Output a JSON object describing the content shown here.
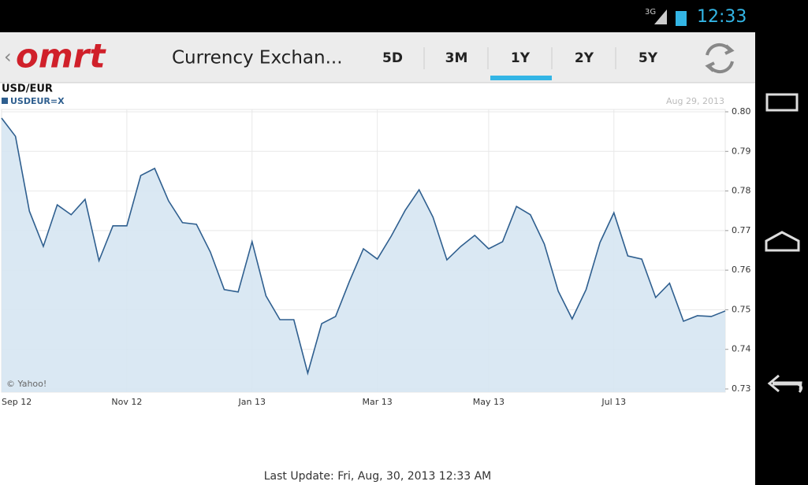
{
  "status_bar": {
    "network": "3G",
    "time": "12:33"
  },
  "app_bar": {
    "logo": "omrt",
    "title": "Currency Exchan...",
    "tabs": [
      "5D",
      "3M",
      "1Y",
      "2Y",
      "5Y"
    ],
    "selected_tab": 2
  },
  "chart_data": {
    "type": "line",
    "title": "USD/EUR",
    "date": "Aug 29, 2013",
    "credit": "© Yahoo!",
    "categories": [
      "Sep 12",
      null,
      null,
      null,
      null,
      null,
      null,
      null,
      null,
      "Nov 12",
      null,
      null,
      null,
      null,
      null,
      null,
      null,
      null,
      "Jan 13",
      null,
      null,
      null,
      null,
      null,
      null,
      null,
      null,
      "Mar 13",
      null,
      null,
      null,
      null,
      null,
      null,
      null,
      "May 13",
      null,
      null,
      null,
      null,
      null,
      null,
      null,
      null,
      "Jul 13",
      null,
      null,
      null,
      null,
      null,
      null,
      null,
      null
    ],
    "series": [
      {
        "name": "USDEUR=X",
        "color": "#2f5f8f",
        "fill": "#d6e6f2",
        "values": [
          0.7984,
          0.7938,
          0.7749,
          0.766,
          0.7765,
          0.774,
          0.7779,
          0.7624,
          0.7712,
          0.7712,
          0.7839,
          0.7857,
          0.7775,
          0.772,
          0.7716,
          0.7646,
          0.7551,
          0.7545,
          0.7672,
          0.7535,
          0.7475,
          0.7475,
          0.734,
          0.7465,
          0.7483,
          0.7572,
          0.7654,
          0.7628,
          0.7686,
          0.7751,
          0.7803,
          0.7734,
          0.7626,
          0.766,
          0.7688,
          0.7654,
          0.7672,
          0.7761,
          0.774,
          0.7666,
          0.7547,
          0.7477,
          0.7551,
          0.767,
          0.7745,
          0.7636,
          0.7628,
          0.7531,
          0.7567,
          0.7471,
          0.7485,
          0.7483,
          0.7497
        ]
      }
    ],
    "ylim": [
      0.73,
      0.8
    ],
    "yticks": [
      {
        "value": 0.8,
        "label": "0.80"
      },
      0.79,
      0.78,
      0.77,
      0.76,
      0.75,
      0.74,
      0.73
    ],
    "grid": true
  },
  "footer": {
    "last_update": "Last Update: Fri, Aug, 30, 2013 12:33 AM"
  }
}
